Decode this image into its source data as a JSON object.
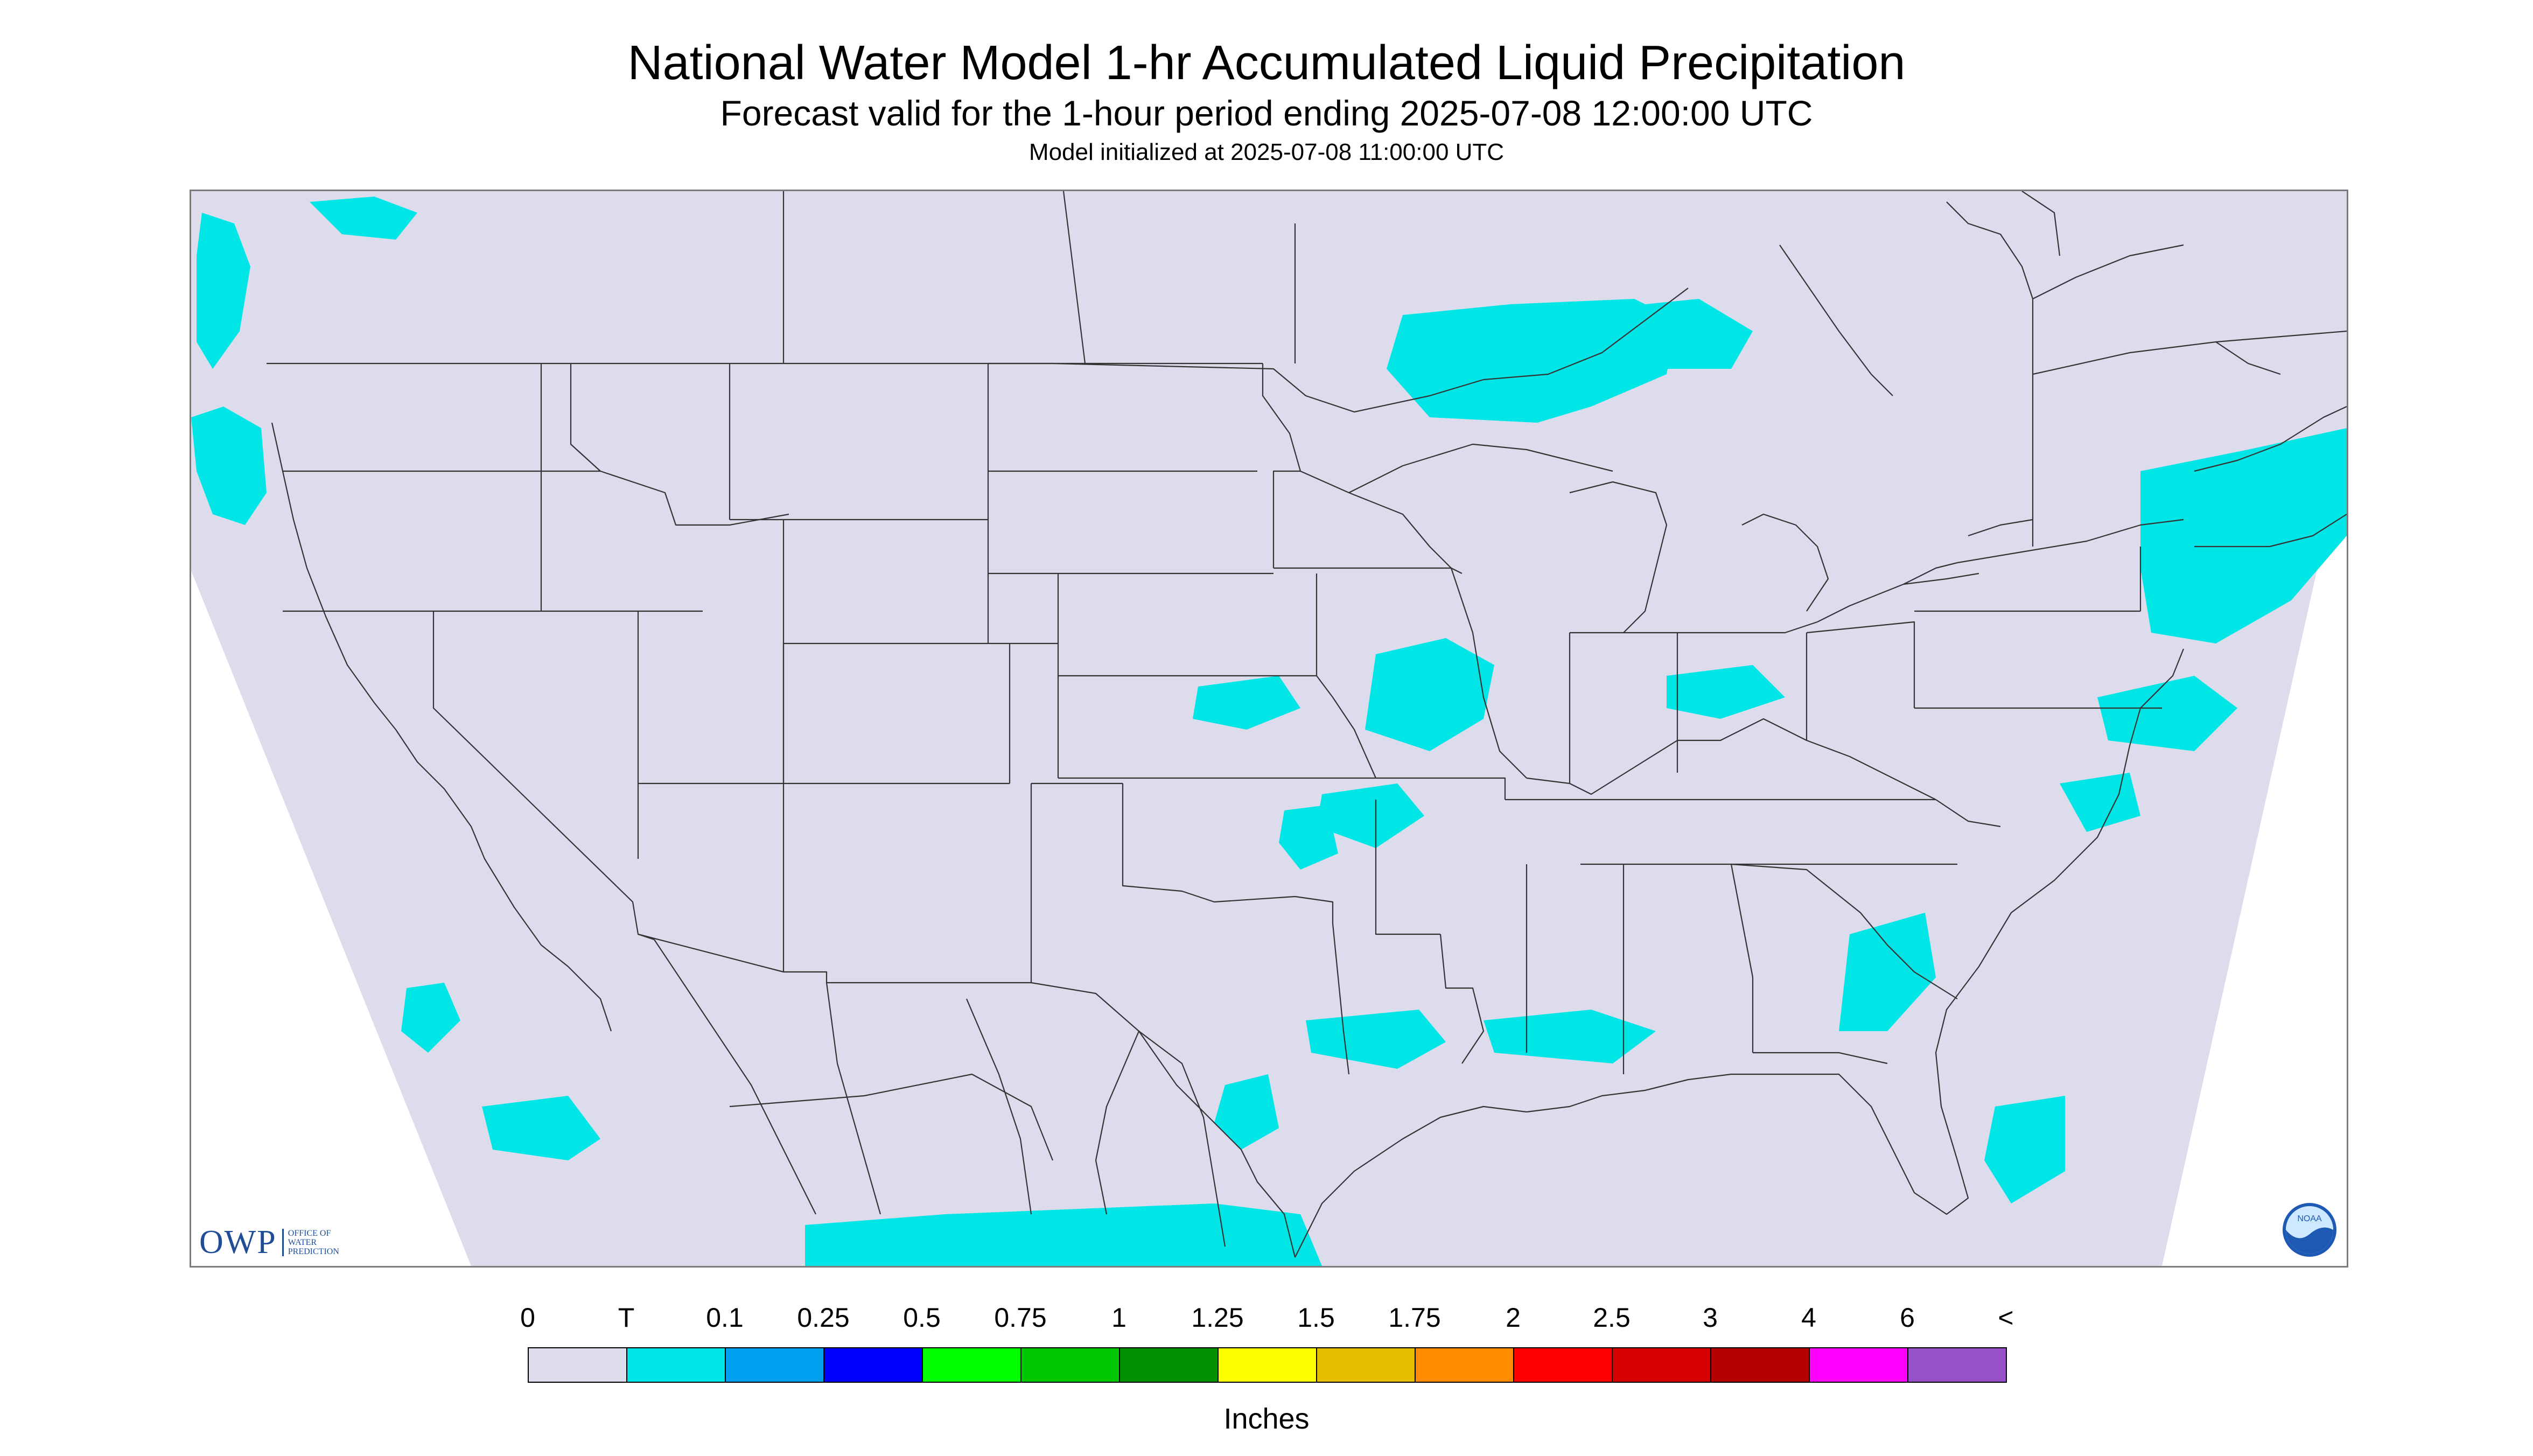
{
  "header": {
    "title": "National Water Model 1-hr Accumulated Liquid Precipitation",
    "subtitle": "Forecast valid for the 1-hour period ending 2025-07-08 12:00:00 UTC",
    "init": "Model initialized at 2025-07-08 11:00:00 UTC"
  },
  "logos": {
    "owp_text": "OWP",
    "owp_sub": [
      "OFFICE OF",
      "WATER",
      "PREDICTION"
    ],
    "noaa_text": "NOAA"
  },
  "legend": {
    "ticks": [
      "0",
      "T",
      "0.1",
      "0.25",
      "0.5",
      "0.75",
      "1",
      "1.25",
      "1.5",
      "1.75",
      "2",
      "2.5",
      "3",
      "4",
      "6",
      "<"
    ],
    "colors": [
      "#dcdcec",
      "#00e6e6",
      "#00a0f0",
      "#0000ff",
      "#00ff00",
      "#00c800",
      "#009100",
      "#ffff00",
      "#e6be00",
      "#ff8c00",
      "#ff0000",
      "#d70000",
      "#b40000",
      "#ff00ff",
      "#9650c8"
    ],
    "unit": "Inches"
  },
  "map": {
    "domain_fill": "#dcdcec",
    "precip_areas": [
      {
        "region": "Washington coast",
        "color": "#00e6e6"
      },
      {
        "region": "Northern Minnesota / Lake Superior",
        "color": "#00e6e6"
      },
      {
        "region": "Iowa / Missouri",
        "color": "#00e6e6"
      },
      {
        "region": "Kansas / Oklahoma",
        "color": "#00e6e6"
      },
      {
        "region": "Louisiana Gulf coast",
        "color": "#00e6e6"
      },
      {
        "region": "New England / Atlantic",
        "color": "#00e6e6"
      },
      {
        "region": "Southeast Atlantic offshore",
        "color": "#00e6e6"
      },
      {
        "region": "Pacific off Baja",
        "color": "#00e6e6"
      },
      {
        "region": "Northern Mexico / Sierra Madre",
        "color": "#00e6e6"
      }
    ]
  }
}
